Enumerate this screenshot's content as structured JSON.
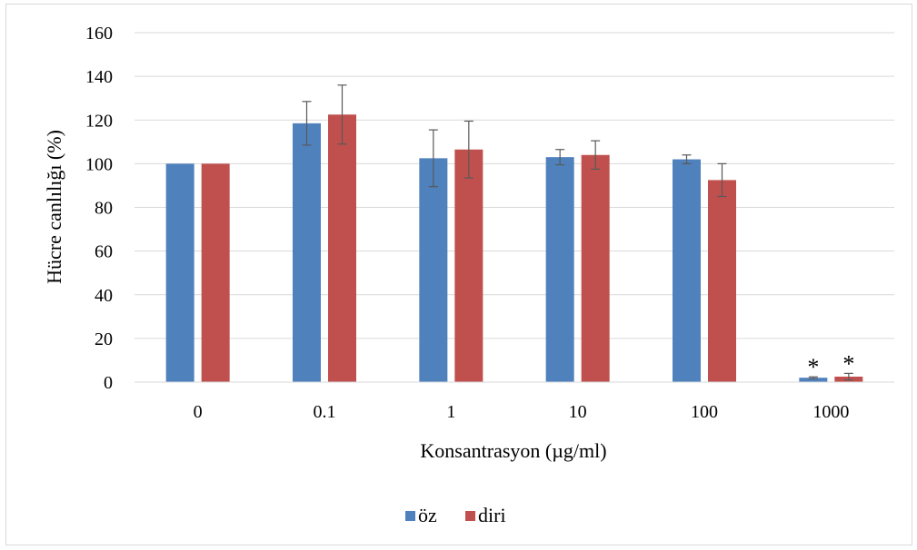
{
  "chart_data": {
    "type": "bar",
    "categories": [
      "0",
      "0.1",
      "1",
      "10",
      "100",
      "1000"
    ],
    "series": [
      {
        "name": "öz",
        "color": "#4f81bd",
        "values": [
          100,
          118.5,
          102.5,
          103,
          102,
          2
        ],
        "errors": [
          0,
          10,
          13,
          3.5,
          2,
          0.4
        ]
      },
      {
        "name": "diri",
        "color": "#c0504d",
        "values": [
          100,
          122.5,
          106.5,
          104,
          92.5,
          2.5
        ],
        "errors": [
          0,
          13.5,
          13,
          6.5,
          7.5,
          1.5
        ]
      }
    ],
    "ylim": [
      0,
      160
    ],
    "yticks": [
      0,
      20,
      40,
      60,
      80,
      100,
      120,
      140,
      160
    ],
    "xlabel": "Konsantrasyon (µg/ml)",
    "ylabel": "Hücre canlılığı (%)",
    "grid": true,
    "legend_position": "bottom",
    "significance_marker": "*",
    "significant_category": "1000"
  }
}
